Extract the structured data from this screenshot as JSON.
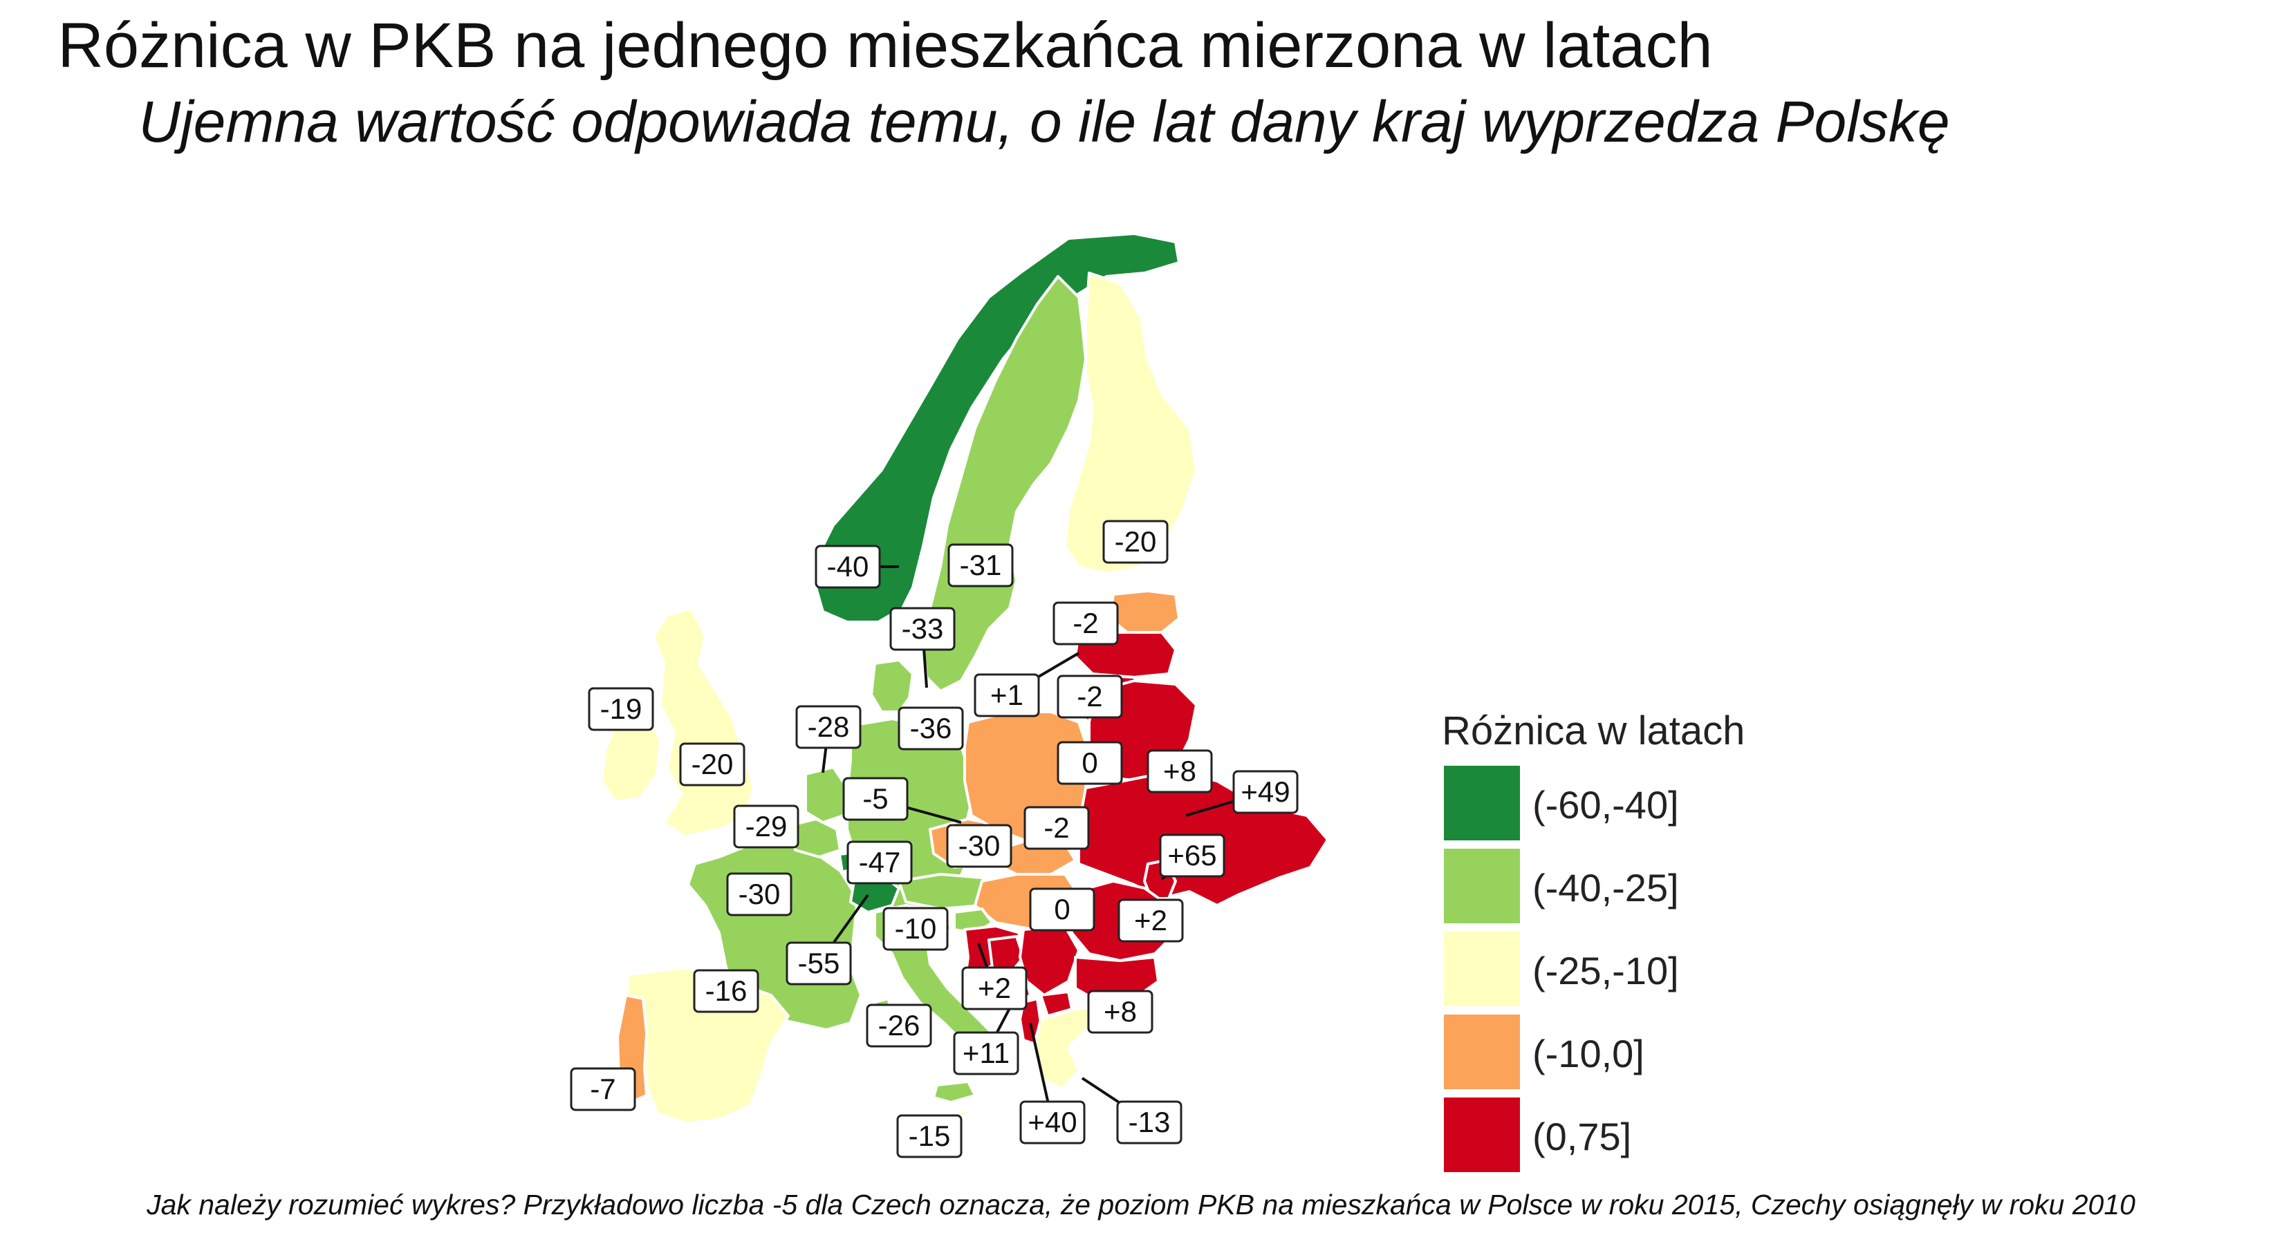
{
  "title": "Różnica w PKB na jednego mieszkańca mierzona w latach",
  "subtitle": "Ujemna wartość odpowiada temu, o ile lat dany kraj wyprzedza Polskę",
  "footnote": "Jak należy rozumieć wykres? Przykładowo liczba -5 dla Czech oznacza, że poziom PKB na mieszkańca w Polsce w roku 2015, Czechy osiągnęły w roku 2010",
  "legend": {
    "title": "Różnica w latach",
    "bins": [
      {
        "label": "(-60,-40]",
        "color": "#1a8a3a"
      },
      {
        "label": "(-40,-25]",
        "color": "#97d35c"
      },
      {
        "label": "(-25,-10]",
        "color": "#ffffc0"
      },
      {
        "label": "(-10,0]",
        "color": "#fca35a"
      },
      {
        "label": "(0,75]",
        "color": "#d0021b"
      }
    ]
  },
  "map_labels": [
    {
      "country": "Norwegia",
      "value": "-40"
    },
    {
      "country": "Szwecja",
      "value": "-31"
    },
    {
      "country": "Finlandia",
      "value": "-20"
    },
    {
      "country": "Dania",
      "value": "-33"
    },
    {
      "country": "Estonia",
      "value": "-2"
    },
    {
      "country": "Łotwa",
      "value": "+1"
    },
    {
      "country": "Litwa",
      "value": "-2"
    },
    {
      "country": "Irlandia",
      "value": "-19"
    },
    {
      "country": "Wielka Brytania",
      "value": "-20"
    },
    {
      "country": "Holandia",
      "value": "-28"
    },
    {
      "country": "Niemcy",
      "value": "-36"
    },
    {
      "country": "Polska",
      "value": "0"
    },
    {
      "country": "Białoruś",
      "value": "+8"
    },
    {
      "country": "Czechy",
      "value": "-5"
    },
    {
      "country": "Belgia",
      "value": "-29"
    },
    {
      "country": "Austria",
      "value": "-30"
    },
    {
      "country": "Słowacja",
      "value": "-2"
    },
    {
      "country": "Ukraina",
      "value": "+49"
    },
    {
      "country": "Francja",
      "value": "-30"
    },
    {
      "country": "Luksemburg",
      "value": "-47"
    },
    {
      "country": "Mołdawia",
      "value": "+65"
    },
    {
      "country": "Szwajcaria",
      "value": "-55"
    },
    {
      "country": "Słowenia",
      "value": "-10"
    },
    {
      "country": "Węgry",
      "value": "0"
    },
    {
      "country": "Rumunia",
      "value": "+2"
    },
    {
      "country": "Hiszpania",
      "value": "-16"
    },
    {
      "country": "Bośnia i Hercegowina",
      "value": "+2"
    },
    {
      "country": "Bułgaria",
      "value": "+8"
    },
    {
      "country": "Włochy",
      "value": "-26"
    },
    {
      "country": "Czarnogóra",
      "value": "+11"
    },
    {
      "country": "Portugalia",
      "value": "-7"
    },
    {
      "country": "Albania",
      "value": "+40"
    },
    {
      "country": "Grecja",
      "value": "-13"
    },
    {
      "country": "Malta",
      "value": "-15"
    }
  ]
}
